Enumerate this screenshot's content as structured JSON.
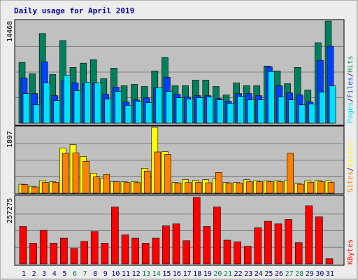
{
  "title": "Daily usage for April 2019",
  "colors": {
    "background": "#ececec",
    "plot_bg": "#c0c0c0",
    "title": "#0000aa",
    "hits": "#00805c",
    "files": "#0040ff",
    "pages": "#00e0ff",
    "visits": "#ffff00",
    "sites": "#ff8000",
    "kbytes": "#ff0000",
    "weekend_label": "#00805c",
    "weekday_label": "#000080"
  },
  "legend": {
    "pages": "Pages",
    "files": "Files",
    "hits": "Hits",
    "sites": "Sites",
    "visits": "Visits",
    "kbytes": "KBytes",
    "sep": "/"
  },
  "chart_data": [
    {
      "type": "bar",
      "panel": "hits_files_pages",
      "y_max_label": "14468",
      "ylim": [
        0,
        14468
      ],
      "grid": true,
      "categories": [
        "1",
        "2",
        "3",
        "4",
        "5",
        "6",
        "7",
        "8",
        "9",
        "10",
        "11",
        "12",
        "13",
        "14",
        "15",
        "16",
        "17",
        "18",
        "19",
        "20",
        "21",
        "22",
        "23",
        "24",
        "25",
        "26",
        "27",
        "28",
        "29",
        "30",
        "31"
      ],
      "weekend_days": [
        6,
        7,
        13,
        14,
        20,
        21,
        27,
        28
      ],
      "series": [
        {
          "name": "Hits",
          "values": [
            8600,
            7000,
            12700,
            6900,
            11700,
            7900,
            8500,
            9000,
            6300,
            7800,
            5300,
            5500,
            5200,
            7400,
            9300,
            5300,
            5300,
            6100,
            6100,
            5200,
            4000,
            5700,
            5300,
            5300,
            8100,
            7400,
            5600,
            7900,
            4700,
            11400,
            14468
          ]
        },
        {
          "name": "Files",
          "values": [
            6400,
            4200,
            8700,
            3900,
            6000,
            5700,
            5600,
            5700,
            4100,
            5100,
            3000,
            3300,
            3600,
            5000,
            6500,
            4100,
            3700,
            3900,
            3900,
            3500,
            3100,
            4200,
            4200,
            3900,
            8000,
            5300,
            4300,
            4000,
            3000,
            8900,
            10900
          ]
        },
        {
          "name": "Pages",
          "values": [
            4200,
            2600,
            5700,
            3200,
            6800,
            4600,
            5800,
            5700,
            3400,
            4500,
            2500,
            3100,
            2900,
            5000,
            4500,
            3600,
            3400,
            3600,
            3700,
            3300,
            2800,
            3800,
            3300,
            3300,
            7300,
            3700,
            3300,
            2600,
            2700,
            4400,
            5300
          ]
        }
      ]
    },
    {
      "type": "bar",
      "panel": "visits_sites",
      "y_max_label": "1897",
      "ylim": [
        0,
        1897
      ],
      "grid": true,
      "categories": [
        "1",
        "2",
        "3",
        "4",
        "5",
        "6",
        "7",
        "8",
        "9",
        "10",
        "11",
        "12",
        "13",
        "14",
        "15",
        "16",
        "17",
        "18",
        "19",
        "20",
        "21",
        "22",
        "23",
        "24",
        "25",
        "26",
        "27",
        "28",
        "29",
        "30",
        "31"
      ],
      "series": [
        {
          "name": "Visits",
          "values": [
            260,
            200,
            360,
            330,
            1300,
            1400,
            1060,
            580,
            420,
            330,
            330,
            340,
            720,
            1897,
            1200,
            310,
            390,
            370,
            390,
            410,
            310,
            310,
            390,
            360,
            360,
            360,
            360,
            280,
            360,
            370,
            360
          ]
        },
        {
          "name": "Sites",
          "values": [
            250,
            180,
            310,
            310,
            1150,
            1160,
            920,
            470,
            540,
            330,
            310,
            310,
            640,
            1190,
            1120,
            290,
            310,
            310,
            300,
            600,
            290,
            290,
            330,
            330,
            330,
            330,
            1150,
            260,
            310,
            330,
            310
          ]
        }
      ]
    },
    {
      "type": "bar",
      "panel": "kbytes",
      "y_max_label": "257275",
      "ylim": [
        0,
        257275
      ],
      "grid": true,
      "categories": [
        "1",
        "2",
        "3",
        "4",
        "5",
        "6",
        "7",
        "8",
        "9",
        "10",
        "11",
        "12",
        "13",
        "14",
        "15",
        "16",
        "17",
        "18",
        "19",
        "20",
        "21",
        "22",
        "23",
        "24",
        "25",
        "26",
        "27",
        "28",
        "29",
        "30",
        "31"
      ],
      "series": [
        {
          "name": "KBytes",
          "values": [
            145000,
            80000,
            130000,
            80000,
            100000,
            60000,
            87000,
            125000,
            80000,
            220000,
            112000,
            100000,
            80000,
            100000,
            147000,
            155000,
            90000,
            257275,
            145000,
            220000,
            92000,
            85000,
            68000,
            140000,
            165000,
            155000,
            172000,
            82000,
            225000,
            182000,
            20000
          ]
        }
      ]
    }
  ]
}
